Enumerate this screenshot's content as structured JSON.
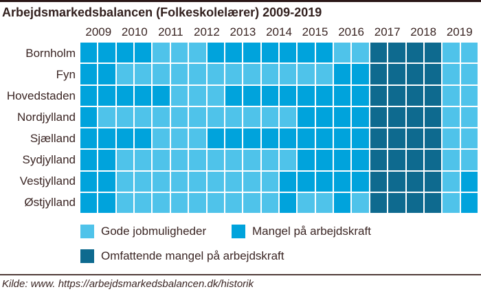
{
  "header": {
    "title": "Arbejdsmarkedsbalancen (Folkeskolelærer) 2009-2019"
  },
  "colors": {
    "G": "#4FC3EA",
    "M": "#00A3DC",
    "O": "#0E6A8F",
    "text": "#3A2523",
    "top_border": "#2B1717",
    "divider": "#4E3936",
    "background": "#FFFFFF"
  },
  "chart_data": {
    "type": "heatmap",
    "title": "Arbejdsmarkedsbalancen (Folkeskolelærer) 2009-2019",
    "years": [
      "2009",
      "2010",
      "2011",
      "2012",
      "2013",
      "2014",
      "2015",
      "2016",
      "2017",
      "2018",
      "2019"
    ],
    "columns_per_year": 2,
    "regions": [
      "Bornholm",
      "Fyn",
      "Hovedstaden",
      "Nordjylland",
      "Sjælland",
      "Sydjylland",
      "Vestjylland",
      "Østjylland"
    ],
    "value_meaning": {
      "G": "Gode jobmuligheder",
      "M": "Mangel på arbejdskraft",
      "O": "Omfattende mangel på arbejdskraft"
    },
    "cells": {
      "Bornholm": [
        "M",
        "M",
        "M",
        "M",
        "G",
        "G",
        "G",
        "M",
        "M",
        "M",
        "M",
        "M",
        "M",
        "M",
        "G",
        "G",
        "O",
        "O",
        "O",
        "O",
        "G",
        "G"
      ],
      "Fyn": [
        "M",
        "M",
        "G",
        "G",
        "G",
        "G",
        "G",
        "G",
        "G",
        "G",
        "G",
        "G",
        "G",
        "G",
        "M",
        "M",
        "O",
        "O",
        "O",
        "O",
        "G",
        "G"
      ],
      "Hovedstaden": [
        "M",
        "M",
        "M",
        "M",
        "M",
        "G",
        "G",
        "G",
        "M",
        "M",
        "M",
        "M",
        "M",
        "M",
        "M",
        "M",
        "O",
        "O",
        "O",
        "O",
        "G",
        "G"
      ],
      "Nordjylland": [
        "M",
        "G",
        "G",
        "G",
        "G",
        "G",
        "G",
        "G",
        "G",
        "G",
        "G",
        "G",
        "M",
        "M",
        "M",
        "M",
        "O",
        "O",
        "O",
        "O",
        "G",
        "G"
      ],
      "Sjælland": [
        "M",
        "M",
        "M",
        "M",
        "G",
        "G",
        "G",
        "M",
        "M",
        "M",
        "M",
        "M",
        "M",
        "M",
        "M",
        "M",
        "O",
        "O",
        "O",
        "O",
        "G",
        "G"
      ],
      "Sydjylland": [
        "M",
        "M",
        "G",
        "G",
        "G",
        "G",
        "G",
        "G",
        "G",
        "G",
        "G",
        "G",
        "M",
        "M",
        "M",
        "M",
        "O",
        "O",
        "O",
        "O",
        "G",
        "G"
      ],
      "Vestjylland": [
        "M",
        "M",
        "G",
        "G",
        "G",
        "G",
        "G",
        "G",
        "G",
        "G",
        "G",
        "M",
        "M",
        "M",
        "M",
        "M",
        "O",
        "O",
        "O",
        "O",
        "G",
        "M"
      ],
      "Østjylland": [
        "M",
        "M",
        "G",
        "G",
        "G",
        "G",
        "G",
        "G",
        "G",
        "G",
        "G",
        "M",
        "G",
        "G",
        "M",
        "G",
        "O",
        "O",
        "O",
        "O",
        "G",
        "M"
      ]
    },
    "legend_position": "bottom-left",
    "grid": "off"
  },
  "legend": {
    "items": [
      {
        "key": "G",
        "label": "Gode jobmuligheder",
        "row": 1
      },
      {
        "key": "M",
        "label": "Mangel på arbejdskraft",
        "row": 1
      },
      {
        "key": "O",
        "label": "Omfattende mangel på arbejdskraft",
        "row": 2
      }
    ]
  },
  "source": {
    "text": "Kilde: www. https://arbejdsmarkedsbalancen.dk/historik"
  }
}
